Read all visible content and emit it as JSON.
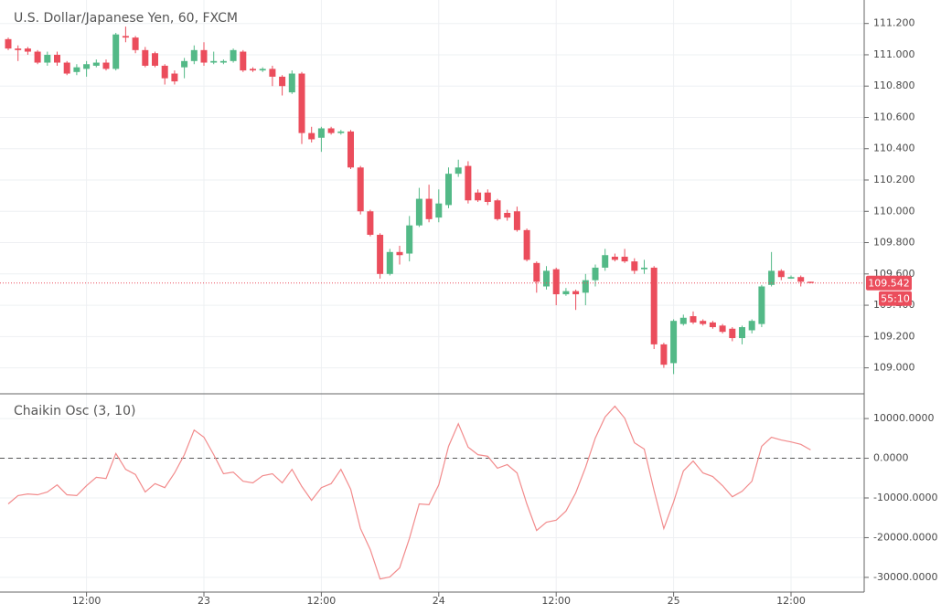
{
  "chart_data": [
    {
      "type": "candlestick",
      "title": "U.S. Dollar/Japanese Yen, 60, FXCM",
      "open": [
        111.1,
        111.04,
        111.04,
        111.02,
        110.95,
        111.0,
        110.95,
        110.89,
        110.91,
        110.93,
        110.95,
        110.91,
        111.12,
        111.11,
        111.03,
        111.01,
        110.93,
        110.88,
        110.92,
        110.96,
        111.03,
        110.95,
        110.95,
        110.96,
        111.02,
        110.91,
        110.9,
        110.91,
        110.86,
        110.76,
        110.88,
        110.5,
        110.47,
        110.53,
        110.5,
        110.51,
        110.28,
        110.0,
        109.85,
        109.6,
        109.74,
        109.73,
        109.91,
        110.08,
        109.96,
        110.04,
        110.24,
        110.29,
        110.12,
        110.12,
        110.07,
        109.99,
        110.0,
        109.88,
        109.67,
        109.52,
        109.63,
        109.47,
        109.49,
        109.48,
        109.56,
        109.64,
        109.71,
        109.71,
        109.68,
        109.63,
        109.64,
        109.15,
        109.03,
        109.28,
        109.33,
        109.3,
        109.29,
        109.27,
        109.25,
        109.19,
        109.24,
        109.28,
        109.53,
        109.62,
        109.57,
        109.58,
        109.55
      ],
      "high": [
        111.11,
        111.06,
        111.05,
        111.03,
        111.02,
        111.02,
        110.96,
        110.94,
        110.96,
        110.97,
        110.97,
        111.14,
        111.18,
        111.12,
        111.05,
        111.02,
        110.94,
        110.9,
        110.98,
        111.06,
        111.08,
        111.02,
        110.97,
        111.04,
        111.03,
        110.92,
        110.92,
        110.93,
        110.87,
        110.9,
        110.89,
        110.54,
        110.54,
        110.54,
        110.52,
        110.52,
        110.29,
        110.01,
        109.86,
        109.76,
        109.78,
        109.97,
        110.15,
        110.17,
        110.14,
        110.28,
        110.33,
        110.32,
        110.14,
        110.14,
        110.08,
        110.01,
        110.03,
        109.89,
        109.68,
        109.65,
        109.64,
        109.51,
        109.5,
        109.6,
        109.66,
        109.76,
        109.73,
        109.76,
        109.7,
        109.69,
        109.65,
        109.16,
        109.31,
        109.34,
        109.36,
        109.31,
        109.3,
        109.28,
        109.26,
        109.27,
        109.31,
        109.53,
        109.74,
        109.63,
        109.59,
        109.59,
        109.55
      ],
      "low": [
        111.03,
        110.96,
        111.0,
        110.94,
        110.93,
        110.93,
        110.87,
        110.87,
        110.86,
        110.92,
        110.9,
        110.9,
        111.08,
        111.01,
        110.92,
        110.92,
        110.81,
        110.81,
        110.85,
        110.94,
        110.93,
        110.94,
        110.94,
        110.95,
        110.89,
        110.89,
        110.89,
        110.8,
        110.74,
        110.75,
        110.43,
        110.44,
        110.38,
        110.49,
        110.49,
        110.27,
        109.98,
        109.84,
        109.57,
        109.59,
        109.66,
        109.68,
        109.9,
        109.93,
        109.93,
        110.02,
        110.22,
        110.05,
        110.06,
        110.04,
        109.94,
        109.94,
        109.87,
        109.68,
        109.48,
        109.5,
        109.4,
        109.46,
        109.37,
        109.4,
        109.52,
        109.62,
        109.68,
        109.67,
        109.6,
        109.6,
        109.12,
        109.0,
        108.96,
        109.27,
        109.28,
        109.27,
        109.25,
        109.22,
        109.17,
        109.15,
        109.22,
        109.26,
        109.52,
        109.56,
        109.57,
        109.52,
        109.54
      ],
      "close": [
        111.04,
        111.03,
        111.02,
        110.95,
        111.0,
        110.95,
        110.88,
        110.92,
        110.94,
        110.95,
        110.91,
        111.13,
        111.11,
        111.03,
        110.93,
        110.93,
        110.85,
        110.83,
        110.96,
        111.03,
        110.95,
        110.96,
        110.96,
        111.03,
        110.9,
        110.9,
        110.91,
        110.86,
        110.8,
        110.88,
        110.5,
        110.46,
        110.53,
        110.5,
        110.51,
        110.28,
        110.0,
        109.85,
        109.6,
        109.74,
        109.72,
        109.91,
        110.08,
        109.95,
        110.05,
        110.24,
        110.28,
        110.07,
        110.07,
        110.06,
        109.95,
        109.96,
        109.88,
        109.69,
        109.55,
        109.62,
        109.47,
        109.49,
        109.47,
        109.56,
        109.64,
        109.72,
        109.69,
        109.68,
        109.62,
        109.64,
        109.15,
        109.02,
        109.3,
        109.32,
        109.29,
        109.28,
        109.26,
        109.23,
        109.19,
        109.26,
        109.3,
        109.52,
        109.62,
        109.58,
        109.58,
        109.55,
        109.542
      ],
      "up_color": "#53b987",
      "down_color": "#eb4d5c",
      "ylim": [
        108.84,
        111.35
      ],
      "yticks": [
        {
          "value": 109.0,
          "label": "109.000"
        },
        {
          "value": 109.2,
          "label": "109.200"
        },
        {
          "value": 109.4,
          "label": "109.400"
        },
        {
          "value": 109.6,
          "label": "109.600"
        },
        {
          "value": 109.8,
          "label": "109.800"
        },
        {
          "value": 110.0,
          "label": "110.000"
        },
        {
          "value": 110.2,
          "label": "110.200"
        },
        {
          "value": 110.4,
          "label": "110.400"
        },
        {
          "value": 110.6,
          "label": "110.600"
        },
        {
          "value": 110.8,
          "label": "110.800"
        },
        {
          "value": 111.0,
          "label": "111.000"
        },
        {
          "value": 111.2,
          "label": "111.200"
        }
      ],
      "last_price": 109.542,
      "countdown": "55:10",
      "grid": true
    },
    {
      "type": "line",
      "title": "Chaikin Osc (3, 10)",
      "categories": [
        null,
        null,
        null,
        null,
        null,
        null,
        null,
        null,
        "12:00",
        null,
        null,
        null,
        null,
        null,
        null,
        null,
        null,
        null,
        null,
        null,
        "23",
        null,
        null,
        null,
        null,
        null,
        null,
        null,
        null,
        null,
        null,
        null,
        "12:00",
        null,
        null,
        null,
        null,
        null,
        null,
        null,
        null,
        null,
        null,
        null,
        "24",
        null,
        null,
        null,
        null,
        null,
        null,
        null,
        null,
        null,
        null,
        null,
        "12:00",
        null,
        null,
        null,
        null,
        null,
        null,
        null,
        null,
        null,
        null,
        null,
        "25",
        null,
        null,
        null,
        null,
        null,
        null,
        null,
        null,
        null,
        null,
        null,
        "12:00",
        null,
        null
      ],
      "values": [
        -11500,
        -9400,
        -9000,
        -9200,
        -8500,
        -6700,
        -9200,
        -9400,
        -6900,
        -4800,
        -5100,
        1200,
        -2800,
        -4100,
        -8500,
        -6400,
        -7400,
        -3700,
        900,
        7100,
        5300,
        900,
        -3900,
        -3500,
        -5800,
        -6200,
        -4400,
        -3900,
        -6200,
        -2800,
        -7100,
        -10600,
        -7400,
        -6400,
        -2800,
        -7800,
        -17700,
        -23000,
        -30400,
        -29900,
        -27600,
        -20200,
        -11500,
        -11700,
        -6700,
        3000,
        8700,
        2800,
        900,
        500,
        -2500,
        -1600,
        -3700,
        -11500,
        -18200,
        -16100,
        -15600,
        -13300,
        -8700,
        -2300,
        5100,
        10400,
        13100,
        10100,
        3900,
        2300,
        -8100,
        -17700,
        -11000,
        -3200,
        -700,
        -3700,
        -4600,
        -6900,
        -9700,
        -8300,
        -5800,
        3000,
        5300,
        4600,
        4100,
        3500,
        2100
      ],
      "color": "#f28b8c",
      "ylim": [
        -33700,
        16000
      ],
      "yticks": [
        {
          "value": -30000,
          "label": "-30000.0000"
        },
        {
          "value": -20000,
          "label": "-20000.0000"
        },
        {
          "value": -10000,
          "label": "-10000.0000"
        },
        {
          "value": 0,
          "label": "0.0000"
        },
        {
          "value": 10000,
          "label": "10000.0000"
        }
      ],
      "baseline": 0,
      "grid": true
    }
  ]
}
